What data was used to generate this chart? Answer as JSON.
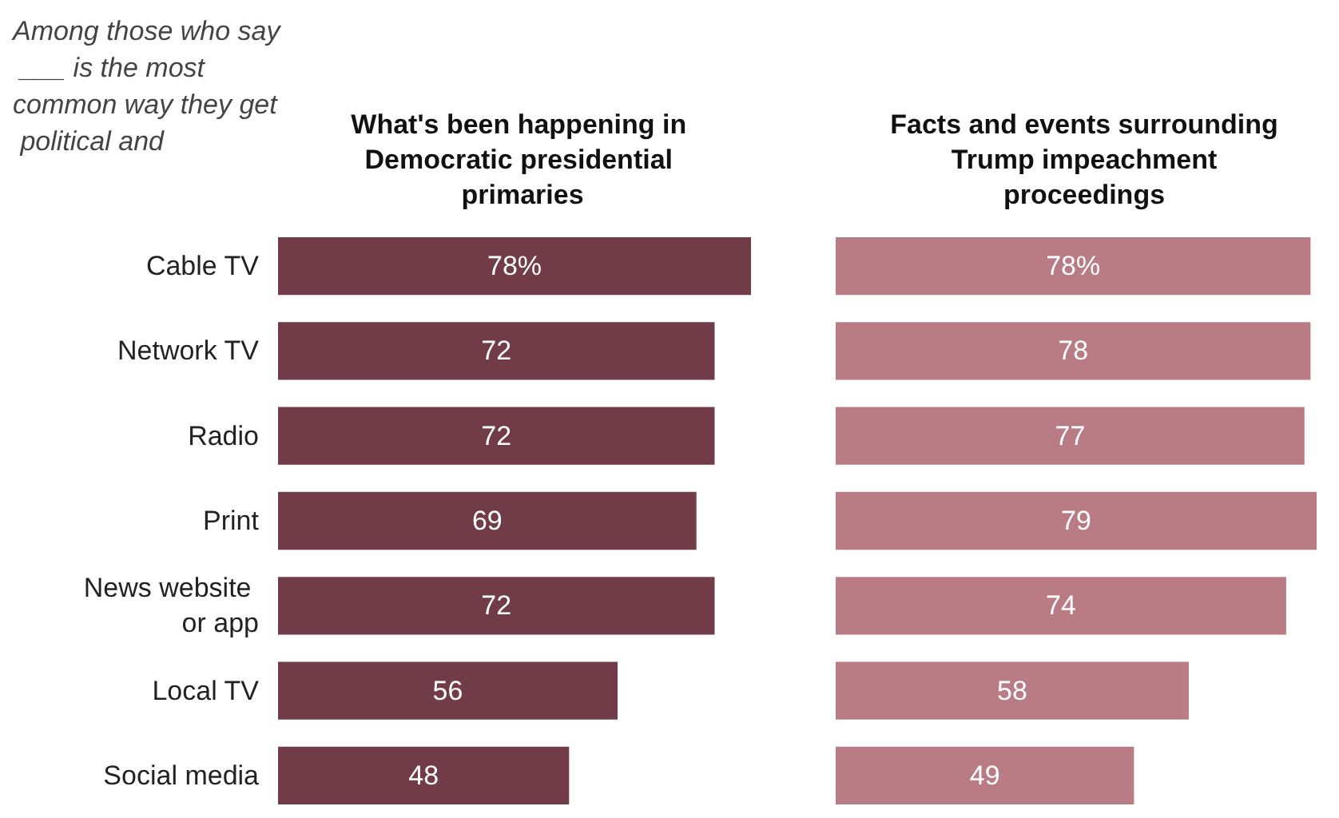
{
  "chart_data": [
    {
      "type": "bar",
      "orientation": "horizontal",
      "title": "What's been happening in Democratic presidential primaries",
      "annotations": [
        "Among those who say ___ is the most common way they get political and"
      ],
      "categories": [
        "Cable TV",
        "Network TV",
        "Radio",
        "Print",
        "News website or app",
        "Local TV",
        "Social media"
      ],
      "values": [
        78,
        72,
        72,
        69,
        72,
        56,
        48
      ],
      "value_labels": [
        "78%",
        "72",
        "72",
        "69",
        "72",
        "56",
        "48"
      ],
      "color": "#713c48",
      "tick_labels": "y"
    },
    {
      "type": "bar",
      "orientation": "horizontal",
      "title": "Facts and events surrounding Trump impeachment proceedings",
      "categories": [
        "Cable TV",
        "Network TV",
        "Radio",
        "Print",
        "News website or app",
        "Local TV",
        "Social media"
      ],
      "values": [
        78,
        78,
        77,
        79,
        74,
        58,
        49
      ],
      "value_labels": [
        "78%",
        "78",
        "77",
        "79",
        "74",
        "58",
        "49"
      ],
      "color": "#b97c85",
      "tick_labels": false
    }
  ]
}
